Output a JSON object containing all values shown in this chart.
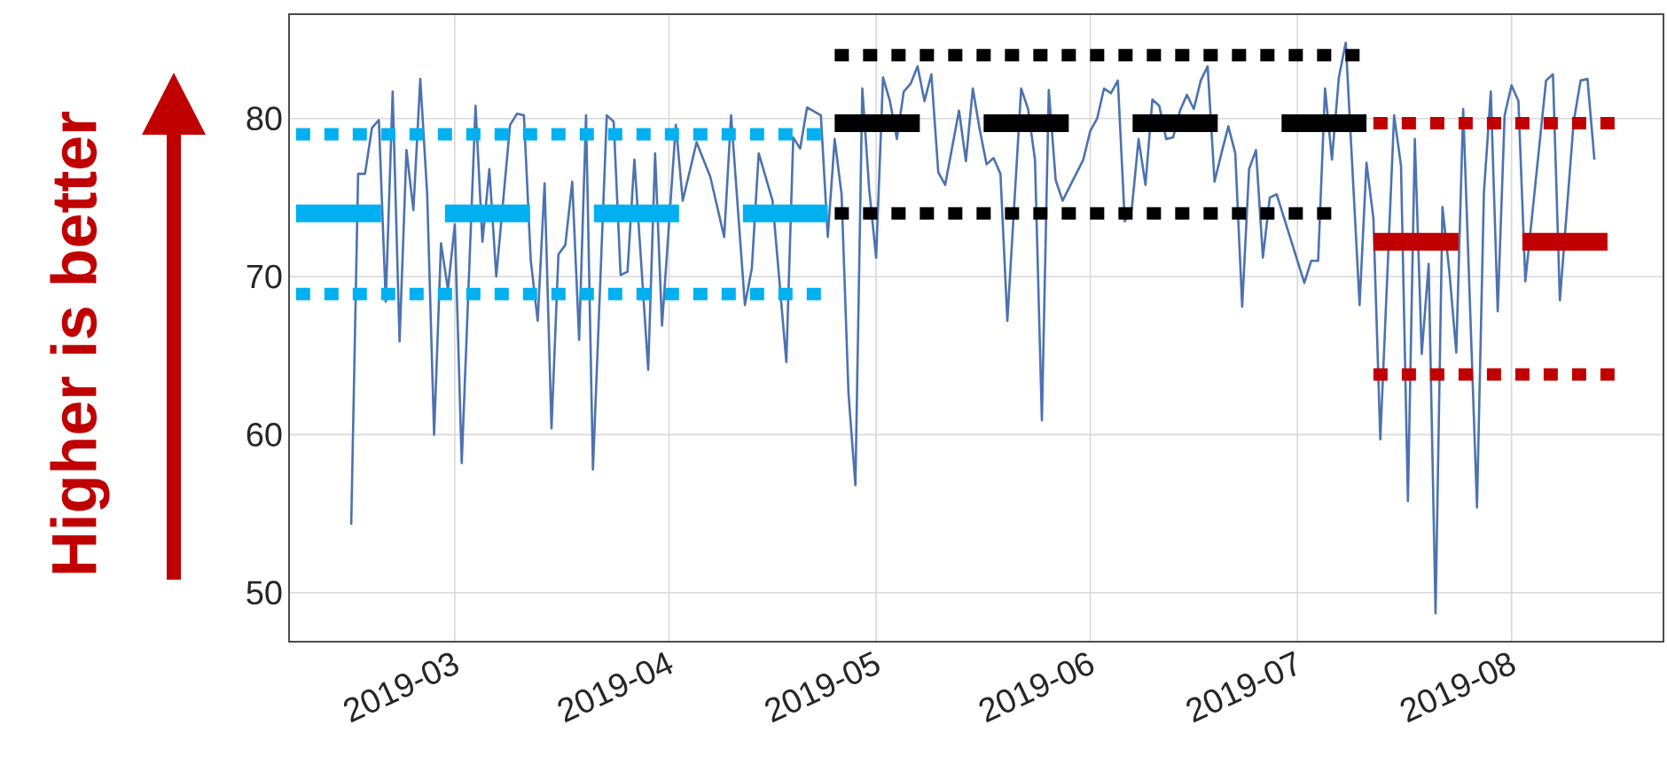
{
  "chart_data": {
    "type": "line",
    "xlim": [
      "2019-02-05",
      "2019-08-23"
    ],
    "ylim": [
      46.9,
      86.6
    ],
    "xticks": [
      {
        "value": "2019-03-01",
        "label": "2019-03"
      },
      {
        "value": "2019-04-01",
        "label": "2019-04"
      },
      {
        "value": "2019-05-01",
        "label": "2019-05"
      },
      {
        "value": "2019-06-01",
        "label": "2019-06"
      },
      {
        "value": "2019-07-01",
        "label": "2019-07"
      },
      {
        "value": "2019-08-01",
        "label": "2019-08"
      }
    ],
    "yticks": [
      50,
      60,
      70,
      80
    ],
    "grid": true,
    "annotations": [
      "Higher is better"
    ],
    "series": [
      {
        "color": "#4c72b0",
        "line_style": "solid",
        "x": [
          "2019-02-14",
          "2019-02-15",
          "2019-02-16",
          "2019-02-17",
          "2019-02-18",
          "2019-02-19",
          "2019-02-20",
          "2019-02-21",
          "2019-02-22",
          "2019-02-23",
          "2019-02-24",
          "2019-02-25",
          "2019-02-26",
          "2019-02-27",
          "2019-02-28",
          "2019-03-01",
          "2019-03-02",
          "2019-03-04",
          "2019-03-05",
          "2019-03-06",
          "2019-03-07",
          "2019-03-09",
          "2019-03-10",
          "2019-03-11",
          "2019-03-12",
          "2019-03-13",
          "2019-03-14",
          "2019-03-15",
          "2019-03-16",
          "2019-03-17",
          "2019-03-18",
          "2019-03-19",
          "2019-03-20",
          "2019-03-21",
          "2019-03-23",
          "2019-03-24",
          "2019-03-25",
          "2019-03-26",
          "2019-03-27",
          "2019-03-29",
          "2019-03-30",
          "2019-03-31",
          "2019-04-02",
          "2019-04-03",
          "2019-04-05",
          "2019-04-07",
          "2019-04-09",
          "2019-04-10",
          "2019-04-12",
          "2019-04-13",
          "2019-04-14",
          "2019-04-16",
          "2019-04-18",
          "2019-04-19",
          "2019-04-20",
          "2019-04-21",
          "2019-04-23",
          "2019-04-24",
          "2019-04-25",
          "2019-04-26",
          "2019-04-27",
          "2019-04-28",
          "2019-04-29",
          "2019-04-30",
          "2019-05-01",
          "2019-05-02",
          "2019-05-03",
          "2019-05-04",
          "2019-05-05",
          "2019-05-06",
          "2019-05-07",
          "2019-05-08",
          "2019-05-09",
          "2019-05-10",
          "2019-05-11",
          "2019-05-13",
          "2019-05-14",
          "2019-05-15",
          "2019-05-16",
          "2019-05-17",
          "2019-05-18",
          "2019-05-19",
          "2019-05-20",
          "2019-05-22",
          "2019-05-23",
          "2019-05-24",
          "2019-05-25",
          "2019-05-26",
          "2019-05-27",
          "2019-05-28",
          "2019-05-31",
          "2019-06-01",
          "2019-06-02",
          "2019-06-03",
          "2019-06-04",
          "2019-06-05",
          "2019-06-06",
          "2019-06-07",
          "2019-06-08",
          "2019-06-09",
          "2019-06-10",
          "2019-06-11",
          "2019-06-12",
          "2019-06-13",
          "2019-06-14",
          "2019-06-15",
          "2019-06-16",
          "2019-06-17",
          "2019-06-18",
          "2019-06-19",
          "2019-06-20",
          "2019-06-21",
          "2019-06-22",
          "2019-06-23",
          "2019-06-24",
          "2019-06-25",
          "2019-06-26",
          "2019-06-27",
          "2019-06-28",
          "2019-07-02",
          "2019-07-03",
          "2019-07-04",
          "2019-07-05",
          "2019-07-06",
          "2019-07-07",
          "2019-07-08",
          "2019-07-10",
          "2019-07-11",
          "2019-07-12",
          "2019-07-13",
          "2019-07-15",
          "2019-07-16",
          "2019-07-17",
          "2019-07-18",
          "2019-07-19",
          "2019-07-20",
          "2019-07-21",
          "2019-07-22",
          "2019-07-23",
          "2019-07-24",
          "2019-07-25",
          "2019-07-27",
          "2019-07-28",
          "2019-07-29",
          "2019-07-30",
          "2019-07-31",
          "2019-08-01",
          "2019-08-02",
          "2019-08-03",
          "2019-08-06",
          "2019-08-07",
          "2019-08-08",
          "2019-08-10",
          "2019-08-11",
          "2019-08-12",
          "2019-08-13"
        ],
        "values": [
          54.3,
          76.5,
          76.5,
          79.4,
          79.9,
          68.4,
          81.7,
          65.9,
          78.0,
          74.2,
          82.5,
          75.2,
          60.0,
          72.1,
          69.2,
          73.3,
          58.2,
          80.8,
          72.2,
          76.8,
          70.0,
          79.6,
          80.3,
          80.2,
          71.0,
          67.2,
          75.9,
          60.4,
          71.4,
          72.0,
          76.0,
          66.0,
          80.2,
          57.8,
          80.2,
          79.8,
          70.1,
          70.3,
          77.4,
          64.1,
          77.8,
          66.9,
          79.6,
          74.8,
          78.5,
          76.3,
          72.5,
          80.2,
          68.2,
          70.5,
          77.8,
          74.8,
          64.6,
          78.8,
          78.1,
          80.7,
          80.2,
          72.5,
          78.7,
          75.2,
          62.6,
          56.8,
          81.9,
          75.5,
          71.2,
          82.6,
          81.1,
          78.7,
          81.7,
          82.2,
          83.3,
          81.1,
          82.8,
          76.6,
          75.8,
          80.5,
          77.3,
          81.9,
          79.3,
          77.1,
          77.5,
          76.5,
          67.2,
          81.9,
          80.6,
          77.4,
          60.9,
          81.8,
          76.1,
          74.8,
          77.4,
          79.2,
          80.0,
          81.9,
          81.6,
          82.4,
          73.5,
          74.2,
          78.7,
          75.8,
          81.2,
          80.8,
          78.7,
          78.8,
          80.5,
          81.5,
          80.6,
          82.4,
          83.3,
          76.0,
          77.8,
          79.5,
          77.8,
          68.1,
          76.8,
          78.0,
          71.2,
          75.0,
          75.2,
          69.6,
          71.0,
          71.0,
          81.9,
          77.4,
          82.6,
          84.8,
          68.2,
          77.2,
          73.7,
          59.7,
          80.2,
          77.0,
          55.8,
          78.7,
          65.1,
          70.8,
          48.7,
          74.4,
          70.3,
          65.2,
          80.6,
          55.4,
          75.3,
          81.7,
          67.8,
          80.2,
          82.1,
          81.1,
          69.7,
          82.4,
          82.8,
          68.5,
          79.8,
          82.4,
          82.5,
          77.4
        ]
      },
      {
        "color": "#00b0f0",
        "line_style": "dashed",
        "x": [
          "2019-02-06",
          "2019-04-24"
        ],
        "values": [
          74.0,
          74.0
        ]
      },
      {
        "color": "#00b0f0",
        "line_style": "dotted",
        "x": [
          "2019-02-06",
          "2019-04-24"
        ],
        "values": [
          79.0,
          79.0
        ]
      },
      {
        "color": "#00b0f0",
        "line_style": "dotted",
        "x": [
          "2019-02-06",
          "2019-04-24"
        ],
        "values": [
          68.9,
          68.9
        ]
      },
      {
        "color": "#000000",
        "line_style": "dashed",
        "x": [
          "2019-04-25",
          "2019-07-11"
        ],
        "values": [
          79.7,
          79.7
        ]
      },
      {
        "color": "#000000",
        "line_style": "dotted",
        "x": [
          "2019-04-25",
          "2019-07-10"
        ],
        "values": [
          84.0,
          84.0
        ]
      },
      {
        "color": "#000000",
        "line_style": "dotted",
        "x": [
          "2019-04-25",
          "2019-07-06"
        ],
        "values": [
          74.0,
          74.0
        ]
      },
      {
        "color": "#c00000",
        "line_style": "dashed",
        "x": [
          "2019-07-12",
          "2019-08-16"
        ],
        "values": [
          72.2,
          72.2
        ]
      },
      {
        "color": "#c00000",
        "line_style": "dotted",
        "x": [
          "2019-07-12",
          "2019-08-16"
        ],
        "values": [
          79.7,
          79.7
        ]
      },
      {
        "color": "#c00000",
        "line_style": "dotted",
        "x": [
          "2019-07-12",
          "2019-08-16"
        ],
        "values": [
          63.8,
          63.8
        ]
      }
    ]
  }
}
